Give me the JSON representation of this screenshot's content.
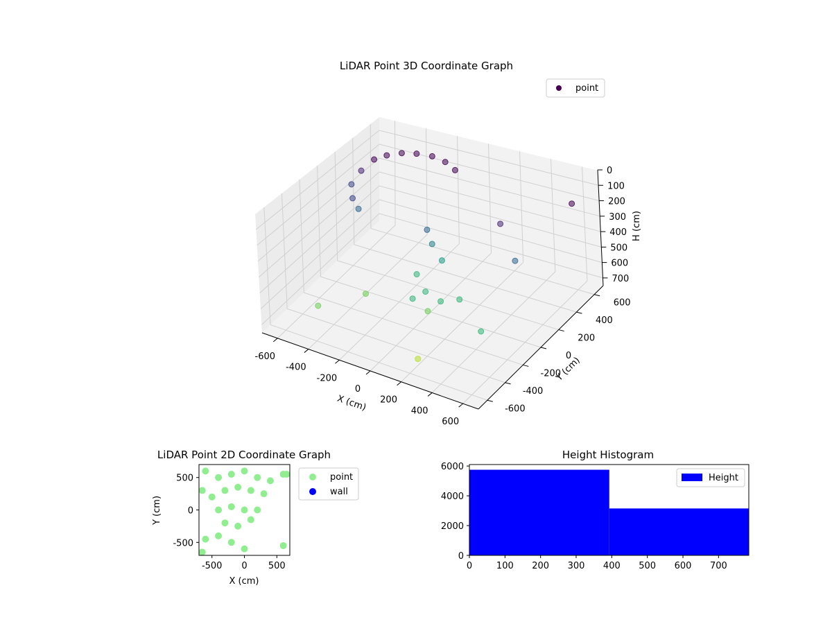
{
  "chart_data": [
    {
      "type": "scatter",
      "projection": "3d",
      "title": "LiDAR Point 3D Coordinate Graph",
      "xlabel": "X (cm)",
      "ylabel": "Y (cm)",
      "zlabel": "H (cm)",
      "xlim": [
        -700,
        700
      ],
      "ylim": [
        -700,
        700
      ],
      "zlim": [
        0,
        750
      ],
      "z_inverted": true,
      "xticks": [
        -600,
        -400,
        -200,
        0,
        200,
        400,
        600
      ],
      "yticks": [
        -600,
        -400,
        -200,
        0,
        200,
        400,
        600
      ],
      "zticks": [
        0,
        100,
        200,
        300,
        400,
        500,
        600,
        700
      ],
      "colormap": "viridis",
      "legend": {
        "entries": [
          "point"
        ],
        "placement": "top-right"
      },
      "series": [
        {
          "name": "point",
          "color": "#440154",
          "approx_points": [
            {
              "x": -560,
              "y": 380,
              "h": 70
            },
            {
              "x": -500,
              "y": 420,
              "h": 40
            },
            {
              "x": -430,
              "y": 470,
              "h": 25
            },
            {
              "x": -350,
              "y": 500,
              "h": 15
            },
            {
              "x": -260,
              "y": 520,
              "h": 10
            },
            {
              "x": -170,
              "y": 510,
              "h": 10
            },
            {
              "x": -90,
              "y": 480,
              "h": 20
            },
            {
              "x": -600,
              "y": 300,
              "h": 120
            },
            {
              "x": -620,
              "y": 220,
              "h": 180
            },
            {
              "x": -580,
              "y": 160,
              "h": 230
            },
            {
              "x": -520,
              "y": 120,
              "h": 260
            },
            {
              "x": -120,
              "y": 200,
              "h": 300
            },
            {
              "x": -60,
              "y": 150,
              "h": 350
            },
            {
              "x": 20,
              "y": 120,
              "h": 420
            },
            {
              "x": -100,
              "y": 40,
              "h": 520
            },
            {
              "x": 0,
              "y": -40,
              "h": 560
            },
            {
              "x": 120,
              "y": -80,
              "h": 560
            },
            {
              "x": 220,
              "y": -40,
              "h": 530
            },
            {
              "x": -40,
              "y": -120,
              "h": 580
            },
            {
              "x": 80,
              "y": -160,
              "h": 600
            },
            {
              "x": 300,
              "y": 300,
              "h": 150
            },
            {
              "x": 450,
              "y": 200,
              "h": 300
            },
            {
              "x": 500,
              "y": -300,
              "h": 500
            },
            {
              "x": -300,
              "y": -200,
              "h": 600
            },
            {
              "x": -500,
              "y": -400,
              "h": 650
            },
            {
              "x": 200,
              "y": -500,
              "h": 700
            },
            {
              "x": 600,
              "y": 600,
              "h": 60
            }
          ]
        }
      ]
    },
    {
      "type": "scatter",
      "title": "LiDAR Point 2D Coordinate Graph",
      "xlabel": "X (cm)",
      "ylabel": "Y (cm)",
      "xlim": [
        -700,
        700
      ],
      "ylim": [
        -700,
        700
      ],
      "xticks": [
        -500,
        0,
        500
      ],
      "yticks": [
        -500,
        0,
        500
      ],
      "legend": {
        "entries": [
          "point",
          "wall"
        ],
        "placement": "outside-right"
      },
      "series": [
        {
          "name": "point",
          "color": "#90ee90",
          "approx_points": [
            {
              "x": -600,
              "y": 600
            },
            {
              "x": -400,
              "y": 500
            },
            {
              "x": -200,
              "y": 550
            },
            {
              "x": 0,
              "y": 600
            },
            {
              "x": 200,
              "y": 500
            },
            {
              "x": 400,
              "y": 450
            },
            {
              "x": 600,
              "y": 550
            },
            {
              "x": -650,
              "y": 300
            },
            {
              "x": -500,
              "y": 200
            },
            {
              "x": -300,
              "y": 300
            },
            {
              "x": -100,
              "y": 350
            },
            {
              "x": 100,
              "y": 300
            },
            {
              "x": 300,
              "y": 250
            },
            {
              "x": -400,
              "y": 0
            },
            {
              "x": -200,
              "y": 50
            },
            {
              "x": 0,
              "y": 0
            },
            {
              "x": 200,
              "y": 0
            },
            {
              "x": -300,
              "y": -200
            },
            {
              "x": -100,
              "y": -250
            },
            {
              "x": 100,
              "y": -150
            },
            {
              "x": -600,
              "y": -450
            },
            {
              "x": -400,
              "y": -400
            },
            {
              "x": -200,
              "y": -500
            },
            {
              "x": 0,
              "y": -600
            },
            {
              "x": 600,
              "y": -550
            },
            {
              "x": 650,
              "y": 550
            },
            {
              "x": -650,
              "y": -650
            }
          ]
        },
        {
          "name": "wall",
          "color": "#0000ff",
          "approx_points": []
        }
      ]
    },
    {
      "type": "bar",
      "subtype": "histogram",
      "title": "Height Histogram",
      "xlim": [
        0,
        785
      ],
      "ylim": [
        0,
        6100
      ],
      "xticks": [
        0,
        100,
        200,
        300,
        400,
        500,
        600,
        700
      ],
      "yticks": [
        0,
        2000,
        4000,
        6000
      ],
      "legend": {
        "entries": [
          "Height"
        ],
        "placement": "top-right"
      },
      "series": [
        {
          "name": "Height",
          "color": "#0000ff",
          "bins": [
            {
              "start": 0,
              "end": 393,
              "count": 5750
            },
            {
              "start": 393,
              "end": 785,
              "count": 3150
            }
          ]
        }
      ]
    }
  ]
}
